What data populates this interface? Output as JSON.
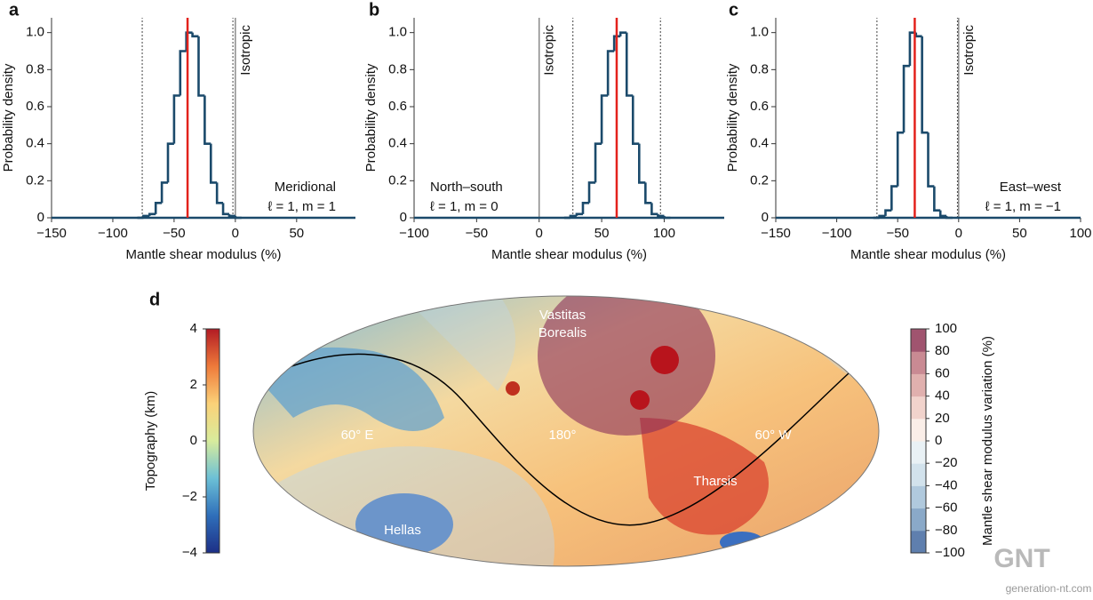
{
  "chart_data": [
    {
      "type": "histogram",
      "panel_label": "a",
      "bins": [
        -80,
        -75,
        -70,
        -65,
        -60,
        -55,
        -50,
        -45,
        -40,
        -35,
        -30,
        -25,
        -20,
        -15,
        -10,
        -5,
        0,
        5
      ],
      "values": [
        0,
        0.01,
        0.02,
        0.08,
        0.19,
        0.4,
        0.66,
        0.9,
        1.0,
        0.98,
        0.66,
        0.4,
        0.19,
        0.08,
        0.02,
        0.01,
        0
      ],
      "color": "#1b4a6b",
      "estimate": {
        "value": -39,
        "color": "#e3221c"
      },
      "interval": [
        -76,
        -2
      ],
      "reference": {
        "value": 0,
        "label": "Isotropic"
      },
      "annotation": [
        "Meridional",
        "ℓ = 1, m = 1"
      ],
      "xlabel": "Mantle shear modulus (%)",
      "ylabel": "Probability density",
      "xlim": [
        -150,
        98
      ],
      "ylim": [
        0,
        1.08
      ],
      "xticks": [
        {
          "value": -150,
          "label": "−150"
        },
        {
          "value": -100,
          "label": "−100"
        },
        {
          "value": -50,
          "label": "−50"
        },
        0,
        50
      ],
      "yticks": [
        0,
        0.2,
        0.4,
        0.6,
        0.8,
        {
          "value": 1,
          "label": "1.0"
        }
      ]
    },
    {
      "type": "histogram",
      "panel_label": "b",
      "bins": [
        20,
        25,
        30,
        35,
        40,
        45,
        50,
        55,
        60,
        65,
        70,
        75,
        80,
        85,
        90,
        95,
        100,
        105
      ],
      "values": [
        0,
        0.01,
        0.02,
        0.08,
        0.19,
        0.4,
        0.66,
        0.9,
        0.98,
        1.0,
        0.66,
        0.4,
        0.19,
        0.08,
        0.02,
        0.01,
        0
      ],
      "color": "#1b4a6b",
      "estimate": {
        "value": 62,
        "color": "#e3221c"
      },
      "interval": [
        27,
        97
      ],
      "reference": {
        "value": 0,
        "label": "Isotropic"
      },
      "annotation": [
        "North–south",
        "ℓ = 1, m = 0"
      ],
      "xlabel": "Mantle shear modulus (%)",
      "ylabel": "Probability density",
      "xlim": [
        -100,
        148
      ],
      "ylim": [
        0,
        1.08
      ],
      "xticks": [
        {
          "value": -100,
          "label": "−100"
        },
        {
          "value": -50,
          "label": "−50"
        },
        0,
        50,
        100
      ],
      "yticks": [
        0,
        0.2,
        0.4,
        0.6,
        0.8,
        {
          "value": 1,
          "label": "1.0"
        }
      ]
    },
    {
      "type": "histogram",
      "panel_label": "c",
      "bins": [
        -70,
        -65,
        -60,
        -55,
        -50,
        -45,
        -40,
        -35,
        -30,
        -25,
        -20,
        -15,
        -10,
        -5
      ],
      "values": [
        0,
        0.01,
        0.04,
        0.17,
        0.46,
        0.82,
        1.0,
        0.98,
        0.46,
        0.17,
        0.04,
        0.01,
        0
      ],
      "color": "#1b4a6b",
      "estimate": {
        "value": -36,
        "color": "#e3221c"
      },
      "interval": [
        -67,
        -1
      ],
      "reference": {
        "value": 0,
        "label": "Isotropic"
      },
      "annotation": [
        "East–west",
        "ℓ = 1, m = −1"
      ],
      "xlabel": "Mantle shear modulus (%)",
      "ylabel": "Probability density",
      "xlim": [
        -150,
        100
      ],
      "ylim": [
        0,
        1.08
      ],
      "xticks": [
        {
          "value": -150,
          "label": "−150"
        },
        {
          "value": -100,
          "label": "−100"
        },
        {
          "value": -50,
          "label": "−50"
        },
        0,
        50,
        100
      ],
      "yticks": [
        0,
        0.2,
        0.4,
        0.6,
        0.8,
        {
          "value": 1,
          "label": "1.0"
        }
      ]
    },
    {
      "type": "map",
      "panel_label": "d",
      "labels": [
        "Vastitas",
        "Borealis",
        "60° E",
        "180°",
        "60° W",
        "Tharsis",
        "Hellas"
      ],
      "colorbars": [
        {
          "label": "Topography (km)",
          "lim": [
            -4,
            4
          ],
          "continuous": true,
          "ticks": [
            {
              "value": -4,
              "label": "−4"
            },
            {
              "value": -2,
              "label": "−2"
            },
            0,
            2,
            4
          ],
          "colors": [
            "#1d2f86",
            "#2f6fba",
            "#6cc0d6",
            "#d8ec9c",
            "#fbd178",
            "#ee7a3a",
            "#b21b24"
          ]
        },
        {
          "label": "Mantle shear modulus variation (%)",
          "lim": [
            -100,
            100
          ],
          "continuous": false,
          "ticks": [
            {
              "value": -100,
              "label": "−100"
            },
            {
              "value": -80,
              "label": "−80"
            },
            {
              "value": -60,
              "label": "−60"
            },
            {
              "value": -40,
              "label": "−40"
            },
            {
              "value": -20,
              "label": "−20"
            },
            0,
            20,
            40,
            60,
            80,
            100
          ],
          "colors": [
            "#5f7fae",
            "#8aa9c8",
            "#b0c9dd",
            "#d2e2ec",
            "#e9f1f5",
            "#faeee8",
            "#f1d3cc",
            "#e0b0ae",
            "#c98a93",
            "#a0546f"
          ]
        }
      ]
    }
  ],
  "watermark": {
    "logo": "GNT",
    "site": "generation-nt.com"
  }
}
